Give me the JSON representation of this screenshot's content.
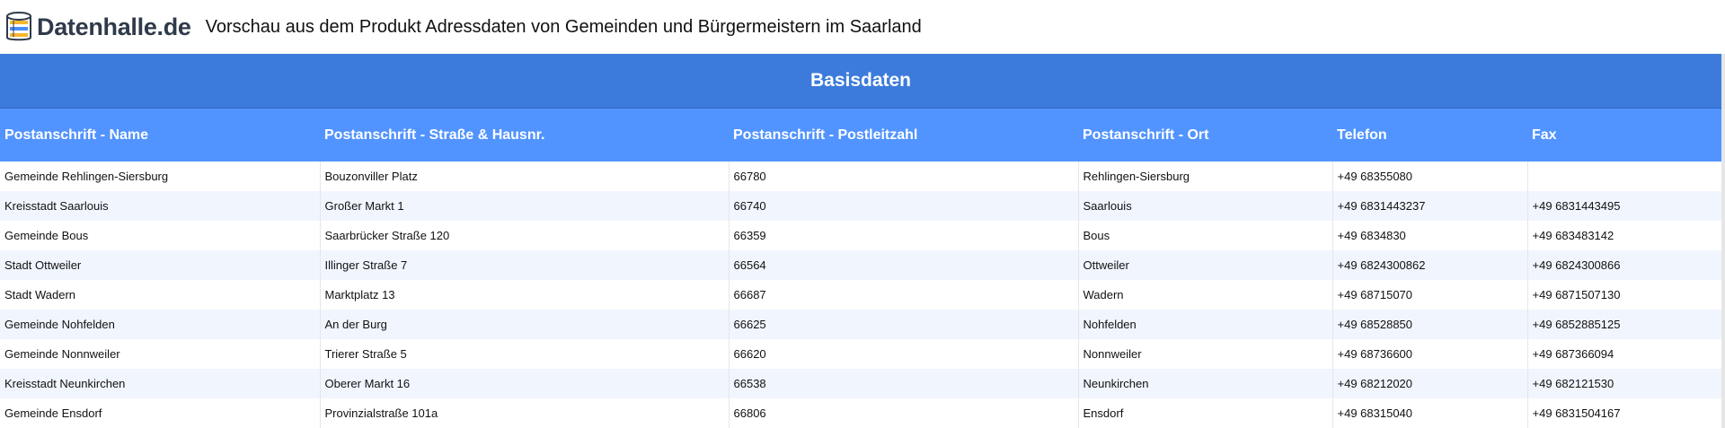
{
  "header": {
    "logo_text": "Datenhalle.de",
    "title": "Vorschau aus dem Produkt Adressdaten von Gemeinden und Bürgermeistern im Saarland"
  },
  "section": {
    "title": "Basisdaten"
  },
  "table": {
    "columns": [
      "Postanschrift - Name",
      "Postanschrift - Straße & Hausnr.",
      "Postanschrift - Postleitzahl",
      "Postanschrift - Ort",
      "Telefon",
      "Fax"
    ],
    "rows": [
      [
        "Gemeinde Rehlingen-Siersburg",
        "Bouzonviller Platz",
        "66780",
        "Rehlingen-Siersburg",
        "+49 68355080",
        ""
      ],
      [
        "Kreisstadt Saarlouis",
        "Großer Markt 1",
        "66740",
        "Saarlouis",
        "+49 6831443237",
        "+49 6831443495"
      ],
      [
        "Gemeinde Bous",
        "Saarbrücker Straße 120",
        "66359",
        "Bous",
        "+49 6834830",
        "+49 683483142"
      ],
      [
        "Stadt Ottweiler",
        "Illinger Straße 7",
        "66564",
        "Ottweiler",
        "+49 6824300862",
        "+49 6824300866"
      ],
      [
        "Stadt Wadern",
        "Marktplatz 13",
        "66687",
        "Wadern",
        "+49 68715070",
        "+49 6871507130"
      ],
      [
        "Gemeinde Nohfelden",
        "An der Burg",
        "66625",
        "Nohfelden",
        "+49 68528850",
        "+49 6852885125"
      ],
      [
        "Gemeinde Nonnweiler",
        "Trierer Straße 5",
        "66620",
        "Nonnweiler",
        "+49 68736600",
        "+49 687366094"
      ],
      [
        "Kreisstadt Neunkirchen",
        "Oberer Markt 16",
        "66538",
        "Neunkirchen",
        "+49 68212020",
        "+49 682121530"
      ],
      [
        "Gemeinde Ensdorf",
        "Provinzialstraße 101a",
        "66806",
        "Ensdorf",
        "+49 68315040",
        "+49 6831504167"
      ]
    ]
  },
  "colors": {
    "section_header": "#3c7bdc",
    "column_header": "#5294ff",
    "row_alt": "#f1f5fe"
  }
}
